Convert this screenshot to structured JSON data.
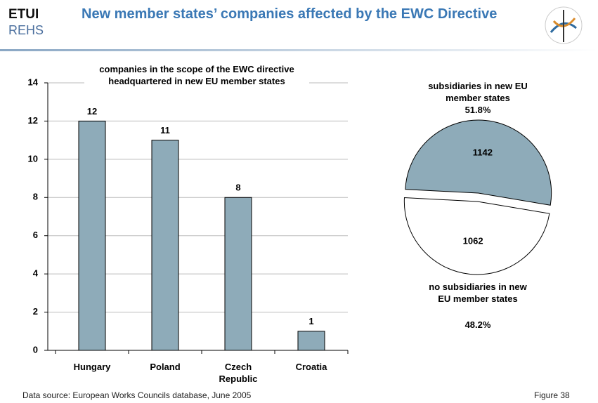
{
  "header": {
    "logo_top": "ETUI",
    "logo_bottom": "REHS",
    "title": "New member states’ companies affected by the EWC Directive"
  },
  "chart_data": [
    {
      "type": "bar",
      "title": "companies in the scope of the EWC directive headquartered in new EU member states",
      "categories": [
        "Hungary",
        "Poland",
        "Czech Republic",
        "Croatia"
      ],
      "values": [
        12,
        11,
        8,
        1
      ],
      "color": "#8eabb9",
      "ylim": [
        0,
        14
      ],
      "yticks": [
        0,
        2,
        4,
        6,
        8,
        10,
        12,
        14
      ],
      "grid": true
    },
    {
      "type": "pie",
      "categories": [
        "subsidiaries in new EU member states",
        "no subsidiaries in new EU member states"
      ],
      "values": [
        1142,
        1062
      ],
      "percent_labels": [
        "51.8%",
        "48.2%"
      ],
      "colors": [
        "#8eabb9",
        "#ffffff"
      ]
    }
  ],
  "footer": {
    "source": "Data source: European Works Councils database, June 2005",
    "figure": "Figure 38"
  }
}
